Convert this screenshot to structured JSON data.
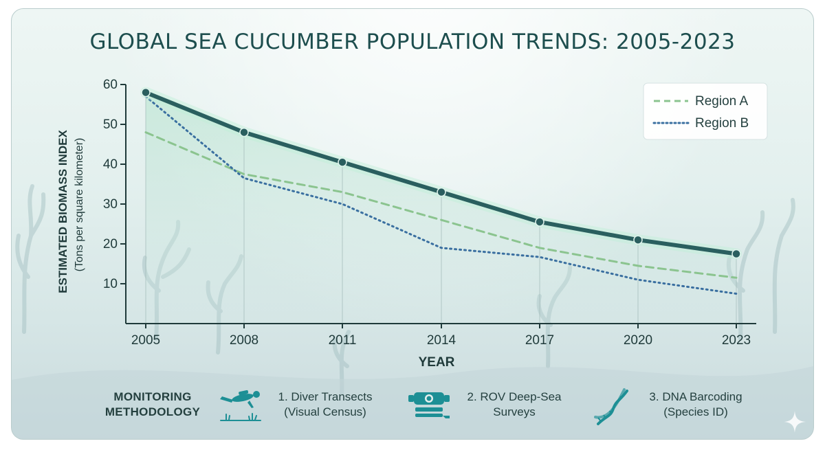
{
  "title": "GLOBAL SEA CUCUMBER POPULATION TRENDS: 2005-2023",
  "colors": {
    "global": "#2a5f5f",
    "region_a": "#8bc48f",
    "region_b": "#3a6fa0",
    "axis": "#1f3a3a",
    "icon": "#1d8f95"
  },
  "chart_data": {
    "type": "line",
    "title": "GLOBAL SEA CUCUMBER POPULATION TRENDS: 2005-2023",
    "xlabel": "YEAR",
    "ylabel": "ESTIMATED BIOMASS INDEX",
    "ylabel_sub": "(Tons per square kilometer)",
    "categories": [
      "2005",
      "2008",
      "2011",
      "2014",
      "2017",
      "2020",
      "2023"
    ],
    "ylim": [
      0,
      60
    ],
    "yticks": [
      "10",
      "20",
      "30",
      "40",
      "50",
      "60"
    ],
    "grid": "vertical-lines-at-points",
    "legend_position": "top-right",
    "series": [
      {
        "values": [
          58,
          48,
          40.5,
          33,
          25.5,
          21,
          17.5
        ],
        "style": "solid"
      },
      {
        "name": "Region A",
        "values": [
          48,
          37.5,
          33,
          26,
          19,
          14.5,
          11.5
        ],
        "style": "dashed"
      },
      {
        "name": "Region B",
        "values": [
          57,
          36.5,
          30,
          19,
          16.7,
          11,
          7.5
        ],
        "style": "dotted"
      }
    ]
  },
  "footer": {
    "label_line1": "MONITORING",
    "label_line2": "METHODOLOGY",
    "methods": [
      {
        "icon": "diver-icon",
        "line1": "1. Diver Transects",
        "line2": "(Visual Census)"
      },
      {
        "icon": "rov-icon",
        "line1": "2. ROV Deep-Sea",
        "line2": "Surveys"
      },
      {
        "icon": "dna-icon",
        "line1": "3. DNA Barcoding",
        "line2": "(Species ID)"
      }
    ]
  }
}
